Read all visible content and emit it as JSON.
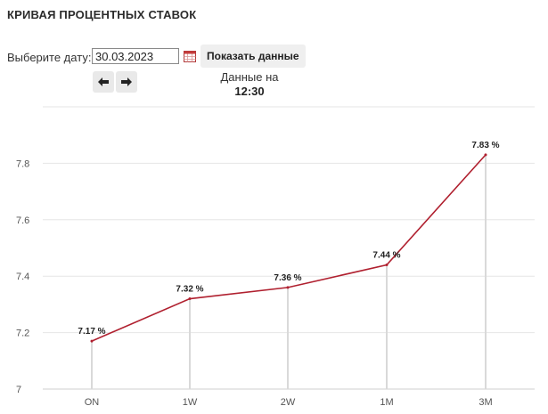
{
  "page": {
    "title": "КРИВАЯ ПРОЦЕНТНЫХ СТАВОК",
    "date_label": "Выберите дату:",
    "date_value": "30.03.2023",
    "show_button": "Показать данные",
    "data_on_label": "Данные на",
    "data_time": "12:30"
  },
  "icons": {
    "calendar": "calendar-icon",
    "prev": "arrow-left-icon",
    "next": "arrow-right-icon"
  },
  "colors": {
    "line": "#b0202f",
    "grid": "#e6e6e6",
    "drop": "#d9d9d9"
  },
  "chart_data": {
    "type": "line",
    "categories": [
      "ON",
      "1W",
      "2W",
      "1M",
      "3M"
    ],
    "values": [
      7.17,
      7.32,
      7.36,
      7.44,
      7.83
    ],
    "data_labels": [
      "7.17 %",
      "7.32 %",
      "7.36 %",
      "7.44 %",
      "7.83 %"
    ],
    "yticks": [
      "7",
      "7.2",
      "7.4",
      "7.6",
      "7.8"
    ],
    "ylim": [
      7,
      8
    ],
    "grid": true
  }
}
